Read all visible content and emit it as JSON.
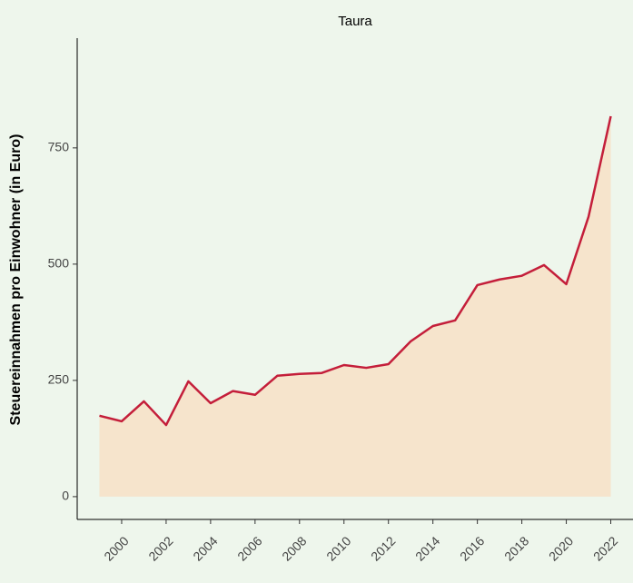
{
  "chart_data": {
    "type": "area-line",
    "title": "Taura",
    "y_label": "Steuereinnahmen pro Einwohner (in Euro)",
    "x": [
      1999,
      2000,
      2001,
      2002,
      2003,
      2004,
      2005,
      2006,
      2007,
      2008,
      2009,
      2010,
      2011,
      2012,
      2013,
      2014,
      2015,
      2016,
      2017,
      2018,
      2019,
      2020,
      2021,
      2022
    ],
    "values": [
      174,
      162,
      205,
      154,
      248,
      201,
      227,
      219,
      260,
      264,
      266,
      283,
      277,
      285,
      334,
      367,
      379,
      455,
      467,
      475,
      498,
      457,
      602,
      818
    ],
    "color": "#c41e3a",
    "fill_color": "#f6e4cc",
    "xlim": [
      1998,
      2023
    ],
    "xticks": [
      2000,
      2002,
      2004,
      2006,
      2008,
      2010,
      2012,
      2014,
      2016,
      2018,
      2020,
      2022
    ],
    "ylim": [
      -49,
      986
    ],
    "yticks": [
      0,
      250,
      500,
      750
    ],
    "grid": false
  }
}
